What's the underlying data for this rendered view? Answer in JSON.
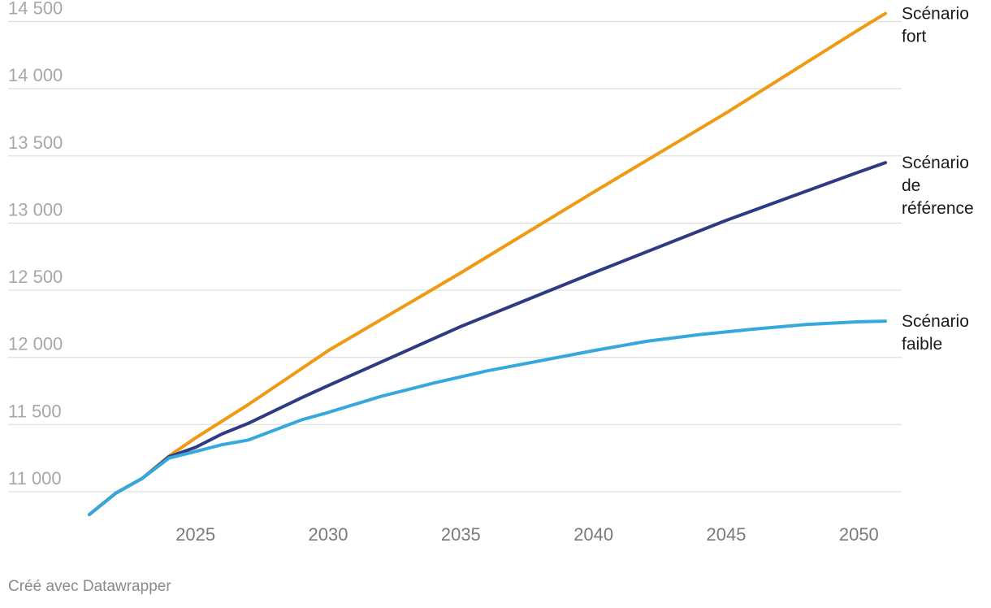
{
  "colors": {
    "fort": "#ee9a12",
    "reference": "#2f3a85",
    "faible": "#37a8dc",
    "grid": "#dddddd"
  },
  "credit": "Créé avec Datawrapper",
  "chart_data": {
    "type": "line",
    "title": "",
    "xlabel": "",
    "ylabel": "",
    "xlim": [
      2021,
      2051
    ],
    "ylim": [
      10800,
      14600
    ],
    "grid": true,
    "legend": "inline-right",
    "x_ticks": [
      {
        "value": 2025,
        "label": "2025"
      },
      {
        "value": 2030,
        "label": "2030"
      },
      {
        "value": 2035,
        "label": "2035"
      },
      {
        "value": 2040,
        "label": "2040"
      },
      {
        "value": 2045,
        "label": "2045"
      },
      {
        "value": 2050,
        "label": "2050"
      }
    ],
    "y_ticks": [
      {
        "value": 11000,
        "label": "11 000"
      },
      {
        "value": 11500,
        "label": "11 500"
      },
      {
        "value": 12000,
        "label": "12 000"
      },
      {
        "value": 12500,
        "label": "12 500"
      },
      {
        "value": 13000,
        "label": "13 000"
      },
      {
        "value": 13500,
        "label": "13 500"
      },
      {
        "value": 14000,
        "label": "14 000"
      },
      {
        "value": 14500,
        "label": "14 500"
      }
    ],
    "series": [
      {
        "key": "fort",
        "label_lines": [
          "Scénario",
          "fort"
        ],
        "points": [
          [
            2021,
            10830
          ],
          [
            2022,
            10990
          ],
          [
            2023,
            11100
          ],
          [
            2024,
            11265
          ],
          [
            2025,
            11400
          ],
          [
            2027,
            11650
          ],
          [
            2030,
            12050
          ],
          [
            2035,
            12630
          ],
          [
            2040,
            13230
          ],
          [
            2045,
            13820
          ],
          [
            2050,
            14440
          ],
          [
            2051,
            14560
          ]
        ]
      },
      {
        "key": "reference",
        "label_lines": [
          "Scénario",
          "de",
          "référence"
        ],
        "points": [
          [
            2021,
            10830
          ],
          [
            2022,
            10990
          ],
          [
            2023,
            11100
          ],
          [
            2024,
            11260
          ],
          [
            2025,
            11330
          ],
          [
            2026,
            11430
          ],
          [
            2027,
            11510
          ],
          [
            2029,
            11700
          ],
          [
            2030,
            11790
          ],
          [
            2035,
            12230
          ],
          [
            2040,
            12630
          ],
          [
            2045,
            13020
          ],
          [
            2050,
            13380
          ],
          [
            2051,
            13450
          ]
        ]
      },
      {
        "key": "faible",
        "label_lines": [
          "Scénario",
          "faible"
        ],
        "points": [
          [
            2021,
            10830
          ],
          [
            2022,
            10990
          ],
          [
            2023,
            11100
          ],
          [
            2024,
            11250
          ],
          [
            2025,
            11300
          ],
          [
            2026,
            11350
          ],
          [
            2027,
            11385
          ],
          [
            2028,
            11460
          ],
          [
            2029,
            11535
          ],
          [
            2030,
            11590
          ],
          [
            2032,
            11710
          ],
          [
            2034,
            11810
          ],
          [
            2036,
            11900
          ],
          [
            2038,
            11975
          ],
          [
            2040,
            12050
          ],
          [
            2042,
            12120
          ],
          [
            2044,
            12170
          ],
          [
            2046,
            12210
          ],
          [
            2048,
            12245
          ],
          [
            2050,
            12265
          ],
          [
            2051,
            12270
          ]
        ]
      }
    ]
  }
}
